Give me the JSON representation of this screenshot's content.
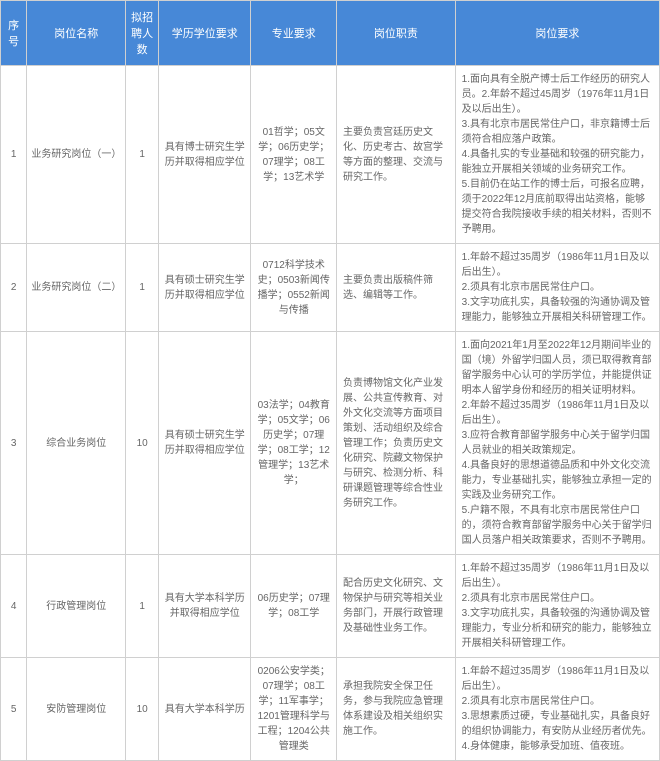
{
  "header": {
    "seq": "序号",
    "name": "岗位名称",
    "count": "拟招聘人数",
    "edu": "学历学位要求",
    "major": "专业要求",
    "duty": "岗位职责",
    "req": "岗位要求"
  },
  "rows": [
    {
      "seq": "1",
      "name": "业务研究岗位（一）",
      "count": "1",
      "edu": "具有博士研究生学历并取得相应学位",
      "major": "01哲学；05文学；06历史学；07理学；08工学；13艺术学",
      "duty": "主要负责宫廷历史文化、历史考古、故宫学等方面的整理、交流与研究工作。",
      "req": "1.面向具有全脱产博士后工作经历的研究人员。2.年龄不超过45周岁（1976年11月1日及以后出生）。\n3.具有北京市居民常住户口，非京籍博士后须符合相应落户政策。\n4.具备扎实的专业基础和较强的研究能力，能独立开展相关领域的业务研究工作。\n5.目前仍在站工作的博士后，可报名应聘，须于2022年12月底前取得出站资格，能够提交符合我院接收手续的相关材料，否则不予聘用。"
    },
    {
      "seq": "2",
      "name": "业务研究岗位（二）",
      "count": "1",
      "edu": "具有硕士研究生学历并取得相应学位",
      "major": "0712科学技术史；0503新闻传播学；0552新闻与传播",
      "duty": "主要负责出版稿件筛选、编辑等工作。",
      "req": "1.年龄不超过35周岁（1986年11月1日及以后出生）。\n2.须具有北京市居民常住户口。\n3.文字功底扎实，具备较强的沟通协调及管理能力，能够独立开展相关科研管理工作。"
    },
    {
      "seq": "3",
      "name": "综合业务岗位",
      "count": "10",
      "edu": "具有硕士研究生学历并取得相应学位",
      "major": "03法学；04教育学；05文学；06历史学；07理学；08工学；12管理学；13艺术学；",
      "duty": "负责博物馆文化产业发展、公共宣传教育、对外文化交流等方面项目策划、活动组织及综合管理工作；负责历史文化研究、院藏文物保护与研究、检测分析、科研课题管理等综合性业务研究工作。",
      "req": "1.面向2021年1月至2022年12月期间毕业的国（境）外留学归国人员，须已取得教育部留学服务中心认可的学历学位，并能提供证明本人留学身份和经历的相关证明材料。\n2.年龄不超过35周岁（1986年11月1日及以后出生）。\n3.应符合教育部留学服务中心关于留学归国人员就业的相关政策规定。\n4.具备良好的思想道德品质和中外文化交流能力，专业基础扎实，能够独立承担一定的实践及业务研究工作。\n5.户籍不限，不具有北京市居民常住户口的，须符合教育部留学服务中心关于留学归国人员落户相关政策要求，否则不予聘用。"
    },
    {
      "seq": "4",
      "name": "行政管理岗位",
      "count": "1",
      "edu": "具有大学本科学历并取得相应学位",
      "major": "06历史学；07理学；08工学",
      "duty": "配合历史文化研究、文物保护与研究等相关业务部门，开展行政管理及基础性业务工作。",
      "req": "1.年龄不超过35周岁（1986年11月1日及以后出生）。\n2.须具有北京市居民常住户口。\n3.文字功底扎实，具备较强的沟通协调及管理能力，专业分析和研究的能力，能够独立开展相关科研管理工作。"
    },
    {
      "seq": "5",
      "name": "安防管理岗位",
      "count": "10",
      "edu": "具有大学本科学历",
      "major": "0206公安学类；07理学；08工学；11军事学；1201管理科学与工程；1204公共管理类",
      "duty": "承担我院安全保卫任务，参与我院应急管理体系建设及相关组织实施工作。",
      "req": "1.年龄不超过35周岁（1986年11月1日及以后出生）。\n2.须具有北京市居民常住户口。\n3.思想素质过硬，专业基础扎实，具备良好的组织协调能力，有安防从业经历者优先。\n4.身体健康，能够承受加班、值夜班。"
    }
  ],
  "style": {
    "header_bg": "#4788d7",
    "header_color": "#ffffff",
    "border_color": "#d0d0d0",
    "text_color": "#666666",
    "body_bg": "#ffffff"
  }
}
